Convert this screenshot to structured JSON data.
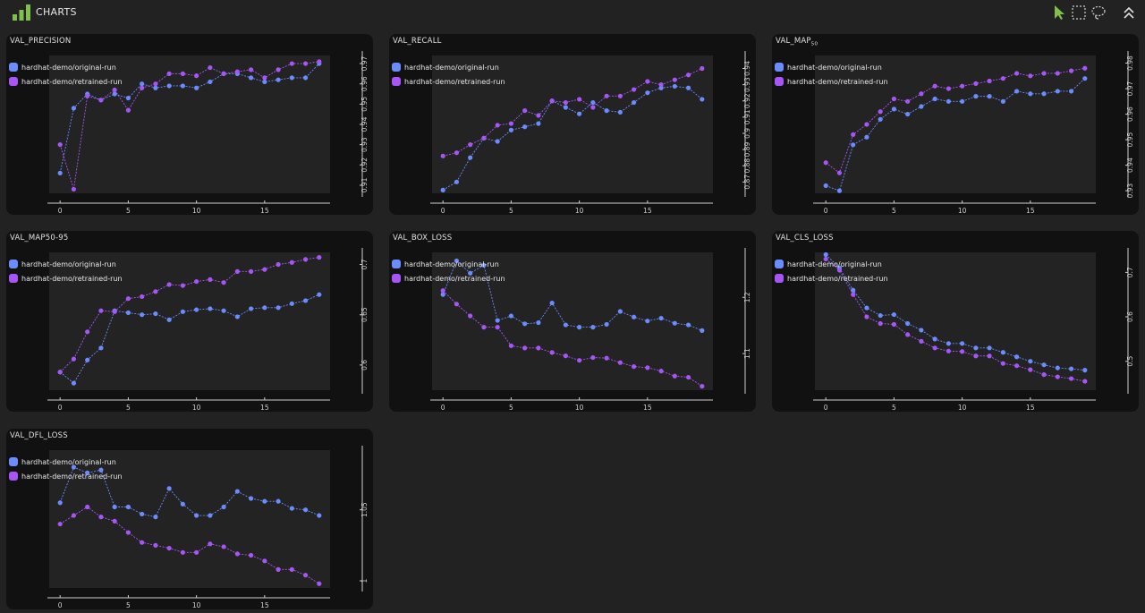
{
  "header": {
    "title": "CHARTS",
    "icons": [
      "chart-bars-icon",
      "pointer-icon",
      "box-select-icon",
      "lasso-icon",
      "collapse-icon"
    ],
    "accent": "#7fbf4d"
  },
  "legend_series": [
    {
      "name": "hardhat-demo/original-run",
      "color": "#6b8cff"
    },
    {
      "name": "hardhat-demo/retrained-run",
      "color": "#a855f7"
    }
  ],
  "panels": [
    {
      "title": "VAL_PRECISION"
    },
    {
      "title": "VAL_RECALL"
    },
    {
      "title": "VAL_MAP",
      "title_sub": "50"
    },
    {
      "title": "VAL_MAP50-95"
    },
    {
      "title": "VAL_BOX_LOSS"
    },
    {
      "title": "VAL_CLS_LOSS"
    },
    {
      "title": "VAL_DFL_LOSS"
    }
  ],
  "chart_data": [
    {
      "type": "line",
      "title": "VAL_PRECISION",
      "x": [
        0,
        1,
        2,
        3,
        4,
        5,
        6,
        7,
        8,
        9,
        10,
        11,
        12,
        13,
        14,
        15,
        16,
        17,
        18,
        19
      ],
      "xticks": [
        0,
        5,
        10,
        15
      ],
      "xlim": [
        -0.8,
        19.8
      ],
      "yticks": [
        0.91,
        0.92,
        0.93,
        0.94,
        0.95,
        0.96,
        0.97
      ],
      "ylim": [
        0.906,
        0.974
      ],
      "series": [
        {
          "name": "hardhat-demo/original-run",
          "values": [
            0.916,
            0.948,
            0.955,
            0.952,
            0.955,
            0.953,
            0.96,
            0.958,
            0.959,
            0.959,
            0.958,
            0.961,
            0.965,
            0.965,
            0.963,
            0.961,
            0.962,
            0.963,
            0.963,
            0.97
          ]
        },
        {
          "name": "hardhat-demo/retrained-run",
          "values": [
            0.93,
            0.908,
            0.954,
            0.952,
            0.957,
            0.947,
            0.958,
            0.96,
            0.965,
            0.965,
            0.964,
            0.968,
            0.965,
            0.966,
            0.967,
            0.963,
            0.967,
            0.97,
            0.97,
            0.971
          ]
        }
      ]
    },
    {
      "type": "line",
      "title": "VAL_RECALL",
      "x": [
        0,
        1,
        2,
        3,
        4,
        5,
        6,
        7,
        8,
        9,
        10,
        11,
        12,
        13,
        14,
        15,
        16,
        17,
        18,
        19
      ],
      "xticks": [
        0,
        5,
        10,
        15
      ],
      "xlim": [
        -0.8,
        19.8
      ],
      "yticks": [
        0.87,
        0.88,
        0.89,
        0.9,
        0.91,
        0.92,
        0.93,
        0.94
      ],
      "ylim": [
        0.863,
        0.948
      ],
      "series": [
        {
          "name": "hardhat-demo/original-run",
          "values": [
            0.865,
            0.87,
            0.885,
            0.897,
            0.895,
            0.902,
            0.904,
            0.906,
            0.92,
            0.916,
            0.912,
            0.919,
            0.914,
            0.913,
            0.919,
            0.925,
            0.928,
            0.929,
            0.928,
            0.921
          ]
        },
        {
          "name": "hardhat-demo/retrained-run",
          "values": [
            0.886,
            0.888,
            0.893,
            0.897,
            0.905,
            0.906,
            0.914,
            0.911,
            0.92,
            0.919,
            0.921,
            0.916,
            0.923,
            0.923,
            0.927,
            0.932,
            0.93,
            0.933,
            0.936,
            0.94
          ]
        }
      ]
    },
    {
      "type": "line",
      "title": "VAL_MAP50",
      "x": [
        0,
        1,
        2,
        3,
        4,
        5,
        6,
        7,
        8,
        9,
        10,
        11,
        12,
        13,
        14,
        15,
        16,
        17,
        18,
        19
      ],
      "xticks": [
        0,
        5,
        10,
        15
      ],
      "xlim": [
        -0.8,
        19.8
      ],
      "yticks": [
        0.93,
        0.94,
        0.95,
        0.96,
        0.97,
        0.98
      ],
      "ylim": [
        0.929,
        0.983
      ],
      "series": [
        {
          "name": "hardhat-demo/original-run",
          "values": [
            0.932,
            0.93,
            0.948,
            0.951,
            0.958,
            0.962,
            0.96,
            0.963,
            0.966,
            0.965,
            0.965,
            0.967,
            0.967,
            0.965,
            0.969,
            0.968,
            0.968,
            0.969,
            0.969,
            0.974
          ]
        },
        {
          "name": "hardhat-demo/retrained-run",
          "values": [
            0.941,
            0.937,
            0.952,
            0.956,
            0.961,
            0.966,
            0.965,
            0.968,
            0.971,
            0.97,
            0.971,
            0.972,
            0.973,
            0.974,
            0.976,
            0.975,
            0.976,
            0.976,
            0.977,
            0.978
          ]
        }
      ]
    },
    {
      "type": "line",
      "title": "VAL_MAP50-95",
      "x": [
        0,
        1,
        2,
        3,
        4,
        5,
        6,
        7,
        8,
        9,
        10,
        11,
        12,
        13,
        14,
        15,
        16,
        17,
        18,
        19
      ],
      "xticks": [
        0,
        5,
        10,
        15
      ],
      "xlim": [
        -0.8,
        19.8
      ],
      "yticks": [
        0.6,
        0.65,
        0.7
      ],
      "ylim": [
        0.575,
        0.712
      ],
      "series": [
        {
          "name": "hardhat-demo/original-run",
          "values": [
            0.593,
            0.582,
            0.605,
            0.617,
            0.654,
            0.652,
            0.65,
            0.651,
            0.645,
            0.653,
            0.655,
            0.656,
            0.654,
            0.648,
            0.656,
            0.657,
            0.657,
            0.661,
            0.664,
            0.67
          ]
        },
        {
          "name": "hardhat-demo/retrained-run",
          "values": [
            0.593,
            0.606,
            0.633,
            0.654,
            0.653,
            0.666,
            0.668,
            0.673,
            0.68,
            0.679,
            0.683,
            0.685,
            0.682,
            0.693,
            0.693,
            0.695,
            0.7,
            0.702,
            0.705,
            0.707
          ]
        }
      ]
    },
    {
      "type": "line",
      "title": "VAL_BOX_LOSS",
      "x": [
        0,
        1,
        2,
        3,
        4,
        5,
        6,
        7,
        8,
        9,
        10,
        11,
        12,
        13,
        14,
        15,
        16,
        17,
        18,
        19
      ],
      "xticks": [
        0,
        5,
        10,
        15
      ],
      "xlim": [
        -0.8,
        19.8
      ],
      "yticks": [
        1.1,
        1.2
      ],
      "ylim": [
        1.035,
        1.28
      ],
      "series": [
        {
          "name": "hardhat-demo/original-run",
          "values": [
            1.205,
            1.265,
            1.243,
            1.257,
            1.159,
            1.167,
            1.153,
            1.155,
            1.19,
            1.151,
            1.147,
            1.147,
            1.152,
            1.175,
            1.165,
            1.158,
            1.163,
            1.154,
            1.151,
            1.141
          ]
        },
        {
          "name": "hardhat-demo/retrained-run",
          "values": [
            1.212,
            1.188,
            1.167,
            1.147,
            1.147,
            1.114,
            1.11,
            1.11,
            1.102,
            1.096,
            1.088,
            1.093,
            1.092,
            1.084,
            1.077,
            1.075,
            1.069,
            1.06,
            1.058,
            1.042
          ]
        }
      ]
    },
    {
      "type": "line",
      "title": "VAL_CLS_LOSS",
      "x": [
        0,
        1,
        2,
        3,
        4,
        5,
        6,
        7,
        8,
        9,
        10,
        11,
        12,
        13,
        14,
        15,
        16,
        17,
        18,
        19
      ],
      "xticks": [
        0,
        5,
        10,
        15
      ],
      "xlim": [
        -0.8,
        19.8
      ],
      "yticks": [
        0.5,
        0.6,
        0.7
      ],
      "ylim": [
        0.435,
        0.745
      ],
      "series": [
        {
          "name": "hardhat-demo/original-run",
          "values": [
            0.74,
            0.71,
            0.66,
            0.62,
            0.603,
            0.605,
            0.585,
            0.57,
            0.55,
            0.54,
            0.54,
            0.53,
            0.53,
            0.52,
            0.51,
            0.5,
            0.492,
            0.485,
            0.483,
            0.48
          ]
        },
        {
          "name": "hardhat-demo/retrained-run",
          "values": [
            0.73,
            0.705,
            0.65,
            0.6,
            0.585,
            0.583,
            0.56,
            0.545,
            0.53,
            0.523,
            0.522,
            0.512,
            0.512,
            0.495,
            0.49,
            0.481,
            0.47,
            0.465,
            0.461,
            0.455
          ]
        }
      ]
    },
    {
      "type": "line",
      "title": "VAL_DFL_LOSS",
      "x": [
        0,
        1,
        2,
        3,
        4,
        5,
        6,
        7,
        8,
        9,
        10,
        11,
        12,
        13,
        14,
        15,
        16,
        17,
        18,
        19
      ],
      "xticks": [
        0,
        5,
        10,
        15
      ],
      "xlim": [
        -0.8,
        19.8
      ],
      "yticks": [
        1,
        1.05
      ],
      "ylim": [
        0.995,
        1.092
      ],
      "series": [
        {
          "name": "hardhat-demo/original-run",
          "values": [
            1.055,
            1.08,
            1.076,
            1.078,
            1.052,
            1.052,
            1.047,
            1.045,
            1.065,
            1.054,
            1.046,
            1.046,
            1.052,
            1.063,
            1.058,
            1.056,
            1.056,
            1.051,
            1.05,
            1.046
          ]
        },
        {
          "name": "hardhat-demo/retrained-run",
          "values": [
            1.04,
            1.046,
            1.052,
            1.045,
            1.042,
            1.034,
            1.027,
            1.025,
            1.023,
            1.02,
            1.02,
            1.026,
            1.024,
            1.019,
            1.018,
            1.014,
            1.008,
            1.008,
            1.004,
            0.998
          ]
        }
      ]
    }
  ]
}
